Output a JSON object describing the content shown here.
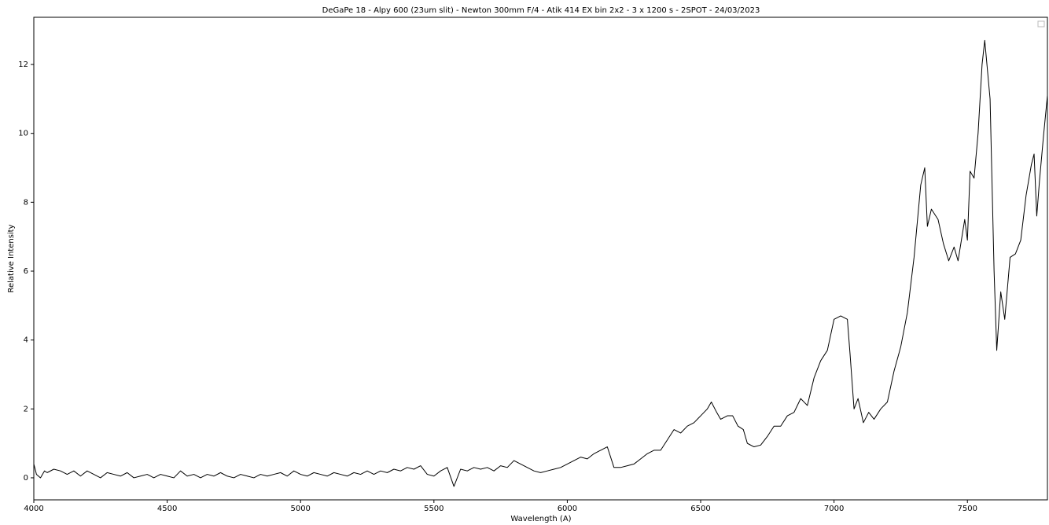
{
  "chart_data": {
    "type": "line",
    "title": "DeGaPe 18 - Alpy 600 (23um slit) - Newton 300mm F/4 - Atik 414 EX bin 2x2 - 3 x 1200 s - 2SPOT - 24/03/2023",
    "xlabel": "Wavelength (A)",
    "ylabel": "Relative Intensity",
    "color": "#000000",
    "x": [
      4000,
      4010,
      4025,
      4040,
      4050,
      4075,
      4100,
      4125,
      4150,
      4175,
      4200,
      4225,
      4250,
      4275,
      4300,
      4325,
      4350,
      4375,
      4400,
      4425,
      4450,
      4475,
      4500,
      4525,
      4550,
      4575,
      4600,
      4625,
      4650,
      4675,
      4700,
      4725,
      4750,
      4775,
      4800,
      4825,
      4850,
      4875,
      4900,
      4925,
      4950,
      4975,
      5000,
      5025,
      5050,
      5075,
      5100,
      5125,
      5150,
      5175,
      5200,
      5225,
      5250,
      5275,
      5300,
      5325,
      5350,
      5375,
      5400,
      5425,
      5450,
      5475,
      5500,
      5525,
      5550,
      5575,
      5600,
      5625,
      5650,
      5675,
      5700,
      5725,
      5750,
      5775,
      5800,
      5825,
      5850,
      5875,
      5900,
      5925,
      5950,
      5975,
      6000,
      6025,
      6050,
      6075,
      6100,
      6125,
      6150,
      6175,
      6200,
      6225,
      6250,
      6275,
      6300,
      6325,
      6350,
      6375,
      6400,
      6425,
      6450,
      6475,
      6500,
      6525,
      6540,
      6560,
      6575,
      6600,
      6620,
      6640,
      6660,
      6675,
      6700,
      6725,
      6750,
      6775,
      6800,
      6825,
      6850,
      6875,
      6900,
      6925,
      6950,
      6975,
      7000,
      7025,
      7050,
      7060,
      7075,
      7090,
      7110,
      7130,
      7150,
      7175,
      7200,
      7225,
      7250,
      7275,
      7300,
      7325,
      7340,
      7350,
      7365,
      7390,
      7410,
      7430,
      7450,
      7465,
      7490,
      7500,
      7510,
      7525,
      7540,
      7555,
      7565,
      7585,
      7600,
      7610,
      7625,
      7640,
      7660,
      7680,
      7700,
      7720,
      7740,
      7750,
      7760,
      7770,
      7785,
      7800
    ],
    "values": [
      0.4,
      0.1,
      0.0,
      0.2,
      0.15,
      0.25,
      0.2,
      0.1,
      0.2,
      0.05,
      0.2,
      0.1,
      0.0,
      0.15,
      0.1,
      0.05,
      0.15,
      0.0,
      0.05,
      0.1,
      0.0,
      0.1,
      0.05,
      0.0,
      0.2,
      0.05,
      0.1,
      0.0,
      0.1,
      0.05,
      0.15,
      0.05,
      0.0,
      0.1,
      0.05,
      0.0,
      0.1,
      0.05,
      0.1,
      0.15,
      0.05,
      0.2,
      0.1,
      0.05,
      0.15,
      0.1,
      0.05,
      0.15,
      0.1,
      0.05,
      0.15,
      0.1,
      0.2,
      0.1,
      0.2,
      0.15,
      0.25,
      0.2,
      0.3,
      0.25,
      0.35,
      0.1,
      0.05,
      0.2,
      0.3,
      -0.25,
      0.25,
      0.2,
      0.3,
      0.25,
      0.3,
      0.2,
      0.35,
      0.3,
      0.5,
      0.4,
      0.3,
      0.2,
      0.15,
      0.2,
      0.25,
      0.3,
      0.4,
      0.5,
      0.6,
      0.55,
      0.7,
      0.8,
      0.9,
      0.3,
      0.3,
      0.35,
      0.4,
      0.55,
      0.7,
      0.8,
      0.8,
      1.1,
      1.4,
      1.3,
      1.5,
      1.6,
      1.8,
      2.0,
      2.2,
      1.9,
      1.7,
      1.8,
      1.8,
      1.5,
      1.4,
      1.0,
      0.9,
      0.95,
      1.2,
      1.5,
      1.5,
      1.8,
      1.9,
      2.3,
      2.1,
      2.9,
      3.4,
      3.7,
      4.6,
      4.7,
      4.6,
      3.6,
      2.0,
      2.3,
      1.6,
      1.9,
      1.7,
      2.0,
      2.2,
      3.1,
      3.8,
      4.8,
      6.4,
      8.5,
      9.0,
      7.3,
      7.8,
      7.5,
      6.8,
      6.3,
      6.7,
      6.3,
      7.5,
      6.9,
      8.9,
      8.7,
      10.0,
      12.0,
      12.7,
      11.0,
      6.0,
      3.7,
      5.4,
      4.6,
      6.4,
      6.5,
      6.9,
      8.2,
      9.1,
      9.4,
      7.6,
      8.6,
      9.9,
      11.1
    ],
    "xlim": [
      4000,
      7800
    ],
    "ylim": [
      -0.64,
      13.37
    ],
    "xticks": [
      4000,
      4500,
      5000,
      5500,
      6000,
      6500,
      7000,
      7500
    ],
    "yticks": [
      0,
      2,
      4,
      6,
      8,
      10,
      12
    ]
  }
}
